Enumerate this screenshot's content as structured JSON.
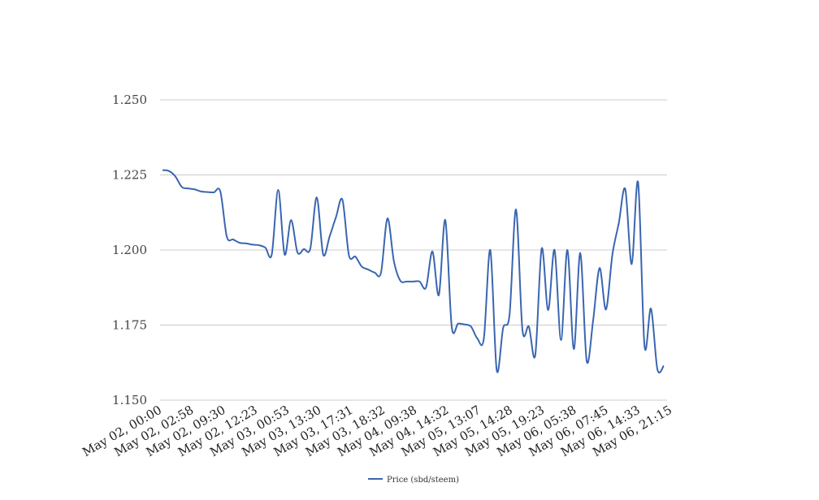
{
  "chart_data": {
    "type": "line",
    "title": "",
    "xlabel": "",
    "ylabel": "",
    "ylim": [
      1.15,
      1.25
    ],
    "y_ticks": [
      "1.150",
      "1.175",
      "1.200",
      "1.225",
      "1.250"
    ],
    "x_ticks": [
      "May 02, 00:00",
      "May 02, 02:58",
      "May 02, 09:30",
      "May 02, 12:23",
      "May 03, 00:53",
      "May 03, 13:30",
      "May 03, 17:31",
      "May 03, 18:32",
      "May 04, 09:38",
      "May 04, 14:32",
      "May 05, 13:07",
      "May 05, 14:28",
      "May 05, 19:23",
      "May 06, 05:38",
      "May 06, 07:45",
      "May 06, 14:33",
      "May 06, 21:15"
    ],
    "grid": true,
    "legend_position": "bottom",
    "colors": {
      "series": "#3a66b0",
      "grid": "#cccccc"
    },
    "series": [
      {
        "name": "Price (sbd/steem)",
        "values": [
          1.2266,
          1.2263,
          1.2245,
          1.221,
          1.2205,
          1.2202,
          1.2195,
          1.2193,
          1.2192,
          1.2195,
          1.2045,
          1.2035,
          1.2024,
          1.2022,
          1.2018,
          1.2016,
          1.2008,
          1.1985,
          1.22,
          1.1985,
          1.21,
          1.1992,
          1.2003,
          1.2005,
          1.2175,
          1.1985,
          1.2045,
          1.211,
          1.2167,
          1.1983,
          1.1978,
          1.1945,
          1.1935,
          1.1925,
          1.1925,
          1.2105,
          1.1963,
          1.1898,
          1.1895,
          1.1895,
          1.1895,
          1.1875,
          1.1995,
          1.185,
          1.21,
          1.1745,
          1.1755,
          1.1752,
          1.1745,
          1.1705,
          1.1705,
          1.2,
          1.16,
          1.174,
          1.1785,
          1.2135,
          1.1735,
          1.1745,
          1.165,
          1.2005,
          1.18,
          1.2,
          1.17,
          1.2,
          1.167,
          1.199,
          1.163,
          1.1765,
          1.194,
          1.1802,
          1.1985,
          1.209,
          1.2203,
          1.1953,
          1.2225,
          1.168,
          1.1805,
          1.1603,
          1.1615
        ]
      }
    ]
  }
}
